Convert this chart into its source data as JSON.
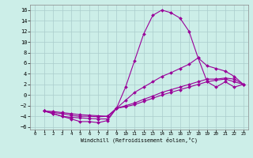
{
  "background_color": "#cceee8",
  "grid_color": "#aacccc",
  "line_color": "#990099",
  "marker_color": "#990099",
  "xlabel": "Windchill (Refroidissement éolien,°C)",
  "xlim": [
    -0.5,
    23.5
  ],
  "ylim": [
    -6.5,
    17.0
  ],
  "xticks": [
    0,
    1,
    2,
    3,
    4,
    5,
    6,
    7,
    8,
    9,
    10,
    11,
    12,
    13,
    14,
    15,
    16,
    17,
    18,
    19,
    20,
    21,
    22,
    23
  ],
  "yticks": [
    -6,
    -4,
    -2,
    0,
    2,
    4,
    6,
    8,
    10,
    12,
    14,
    16
  ],
  "line1_x": [
    1,
    2,
    3,
    4,
    5,
    6,
    7,
    8,
    9,
    10,
    11,
    12,
    13,
    14,
    15,
    16,
    17,
    18,
    19,
    20,
    21,
    22,
    23
  ],
  "line1_y": [
    -3,
    -3.5,
    -4,
    -4.5,
    -5,
    -5,
    -5.2,
    -4.8,
    -2.5,
    1.5,
    6.5,
    11.5,
    15,
    16,
    15.5,
    14.5,
    12,
    7,
    2.5,
    1.5,
    2.5,
    1.5,
    2
  ],
  "line2_x": [
    1,
    2,
    3,
    4,
    5,
    6,
    7,
    8,
    9,
    10,
    11,
    12,
    13,
    14,
    15,
    16,
    17,
    18,
    19,
    20,
    21,
    22,
    23
  ],
  "line2_y": [
    -3,
    -3.5,
    -4,
    -4.2,
    -4.3,
    -4.4,
    -4.5,
    -4.5,
    -2.5,
    -1,
    0.5,
    1.5,
    2.5,
    3.5,
    4.2,
    5,
    5.8,
    7,
    5.5,
    5,
    4.5,
    3.5,
    2
  ],
  "line3_x": [
    1,
    2,
    3,
    4,
    5,
    6,
    7,
    8,
    9,
    10,
    11,
    12,
    13,
    14,
    15,
    16,
    17,
    18,
    19,
    20,
    21,
    22,
    23
  ],
  "line3_y": [
    -3,
    -3.3,
    -3.5,
    -3.8,
    -4,
    -4,
    -4.1,
    -4,
    -2.5,
    -2,
    -1.5,
    -0.8,
    -0.2,
    0.5,
    1,
    1.5,
    2,
    2.5,
    3,
    3,
    3.2,
    3,
    2
  ],
  "line4_x": [
    1,
    2,
    3,
    4,
    5,
    6,
    7,
    8,
    9,
    10,
    11,
    12,
    13,
    14,
    15,
    16,
    17,
    18,
    19,
    20,
    21,
    22,
    23
  ],
  "line4_y": [
    -3,
    -3.1,
    -3.3,
    -3.5,
    -3.7,
    -3.8,
    -3.9,
    -4,
    -2.5,
    -2.2,
    -1.8,
    -1.2,
    -0.6,
    0,
    0.5,
    1,
    1.5,
    2,
    2.5,
    2.8,
    3,
    2.5,
    2
  ]
}
